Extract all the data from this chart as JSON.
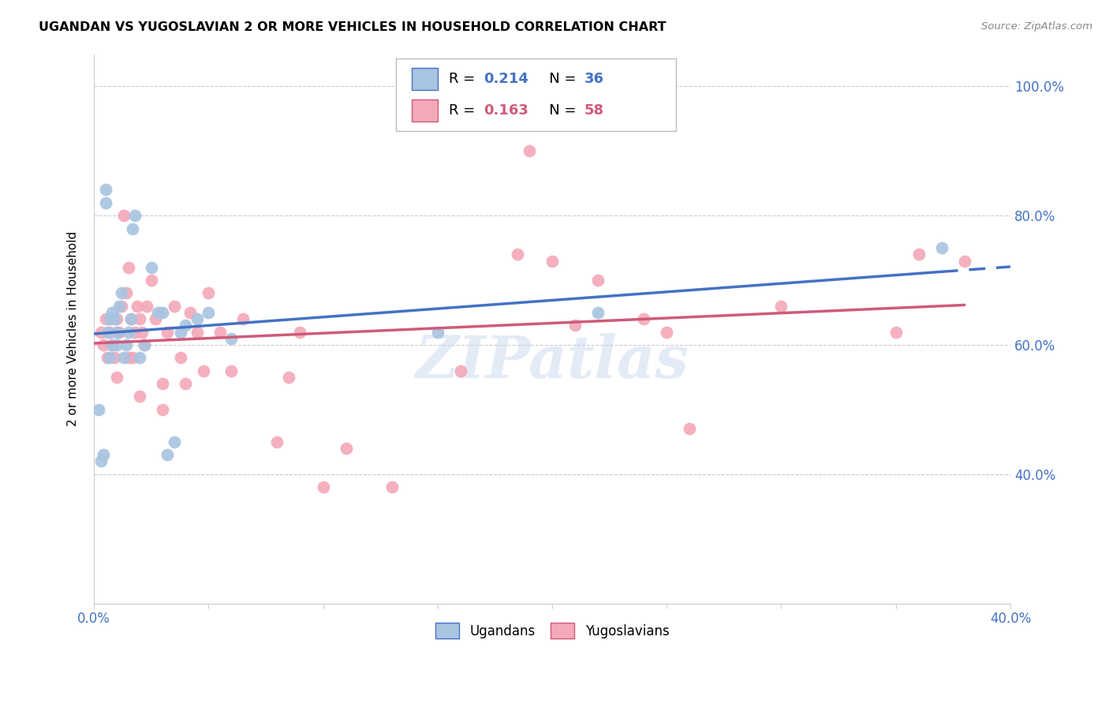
{
  "title": "UGANDAN VS YUGOSLAVIAN 2 OR MORE VEHICLES IN HOUSEHOLD CORRELATION CHART",
  "source": "Source: ZipAtlas.com",
  "ylabel": "2 or more Vehicles in Household",
  "xlim": [
    0.0,
    0.4
  ],
  "ylim": [
    0.2,
    1.05
  ],
  "x_ticks": [
    0.0,
    0.05,
    0.1,
    0.15,
    0.2,
    0.25,
    0.3,
    0.35,
    0.4
  ],
  "y_ticks": [
    0.4,
    0.6,
    0.8,
    1.0
  ],
  "y_tick_labels": [
    "40.0%",
    "60.0%",
    "80.0%",
    "100.0%"
  ],
  "ugandan_R": 0.214,
  "ugandan_N": 36,
  "yugoslav_R": 0.163,
  "yugoslav_N": 58,
  "ugandan_color": "#a8c4e0",
  "yugoslav_color": "#f4a8b8",
  "ugandan_line_color": "#4472C4",
  "yugoslav_line_color": "#d05a7a",
  "ugandan_x": [
    0.002,
    0.003,
    0.004,
    0.005,
    0.005,
    0.006,
    0.007,
    0.007,
    0.008,
    0.008,
    0.009,
    0.01,
    0.01,
    0.011,
    0.012,
    0.013,
    0.014,
    0.015,
    0.016,
    0.017,
    0.018,
    0.02,
    0.022,
    0.025,
    0.028,
    0.03,
    0.032,
    0.035,
    0.038,
    0.04,
    0.045,
    0.05,
    0.06,
    0.15,
    0.22,
    0.37
  ],
  "ugandan_y": [
    0.5,
    0.42,
    0.43,
    0.82,
    0.84,
    0.62,
    0.64,
    0.58,
    0.6,
    0.65,
    0.64,
    0.62,
    0.6,
    0.66,
    0.68,
    0.58,
    0.6,
    0.62,
    0.64,
    0.78,
    0.8,
    0.58,
    0.6,
    0.72,
    0.65,
    0.65,
    0.43,
    0.45,
    0.62,
    0.63,
    0.64,
    0.65,
    0.61,
    0.62,
    0.65,
    0.75
  ],
  "yugoslav_x": [
    0.003,
    0.004,
    0.005,
    0.006,
    0.007,
    0.008,
    0.009,
    0.01,
    0.011,
    0.012,
    0.013,
    0.014,
    0.015,
    0.016,
    0.017,
    0.018,
    0.019,
    0.02,
    0.021,
    0.022,
    0.023,
    0.025,
    0.027,
    0.03,
    0.032,
    0.035,
    0.038,
    0.04,
    0.042,
    0.045,
    0.048,
    0.05,
    0.055,
    0.06,
    0.065,
    0.08,
    0.085,
    0.09,
    0.1,
    0.11,
    0.13,
    0.16,
    0.185,
    0.19,
    0.2,
    0.21,
    0.22,
    0.24,
    0.25,
    0.26,
    0.3,
    0.35,
    0.36,
    0.38,
    0.01,
    0.015,
    0.02,
    0.03
  ],
  "yugoslav_y": [
    0.62,
    0.6,
    0.64,
    0.58,
    0.62,
    0.6,
    0.58,
    0.64,
    0.62,
    0.66,
    0.8,
    0.68,
    0.72,
    0.64,
    0.58,
    0.62,
    0.66,
    0.64,
    0.62,
    0.6,
    0.66,
    0.7,
    0.64,
    0.54,
    0.62,
    0.66,
    0.58,
    0.54,
    0.65,
    0.62,
    0.56,
    0.68,
    0.62,
    0.56,
    0.64,
    0.45,
    0.55,
    0.62,
    0.38,
    0.44,
    0.38,
    0.56,
    0.74,
    0.9,
    0.73,
    0.63,
    0.7,
    0.64,
    0.62,
    0.47,
    0.66,
    0.62,
    0.74,
    0.73,
    0.55,
    0.58,
    0.52,
    0.5
  ],
  "watermark": "ZIPatlas",
  "background_color": "#ffffff",
  "grid_color": "#cccccc",
  "tick_color": "#4472C4"
}
